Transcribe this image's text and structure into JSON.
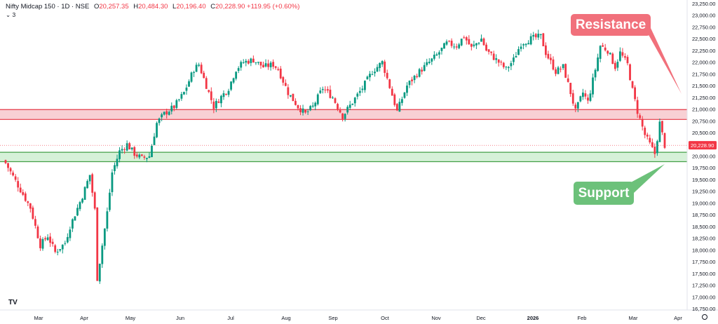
{
  "header": {
    "symbol": "Nifty Midcap 150 · 1D · NSE",
    "open_label": "O",
    "open": "20,257.35",
    "high_label": "H",
    "high": "20,484.30",
    "low_label": "L",
    "low": "20,196.40",
    "close_label": "C",
    "close": "20,228.90",
    "change": "+119.95 (+0.60%)",
    "sub_count": "3",
    "tv_logo": "TV"
  },
  "annotations": {
    "resistance": "Resistance",
    "support": "Support"
  },
  "price_badge": "20,228.90",
  "colors": {
    "up": "#089981",
    "down": "#f23645",
    "resistance_zone": "#f7c8cc",
    "resistance_line": "#e53946",
    "support_zone": "#d2efd4",
    "support_line": "#43a047",
    "resistance_callout": "#f1707b",
    "support_callout": "#6cc17a"
  },
  "chart_data": {
    "type": "candlestick",
    "ylim": [
      16750,
      23250
    ],
    "y_ticks": [
      "23,250.00",
      "23,000.00",
      "22,750.00",
      "22,500.00",
      "22,250.00",
      "22,000.00",
      "21,750.00",
      "21,500.00",
      "21,250.00",
      "21,000.00",
      "20,750.00",
      "20,500.00",
      "20,000.00",
      "19,750.00",
      "19,500.00",
      "19,250.00",
      "19,000.00",
      "18,750.00",
      "18,500.00",
      "18,250.00",
      "18,000.00",
      "17,750.00",
      "17,500.00",
      "17,250.00",
      "17,000.00",
      "16,750.00"
    ],
    "x_ticks": [
      "Mar",
      "Apr",
      "May",
      "Jun",
      "Jul",
      "Aug",
      "Sep",
      "Oct",
      "Nov",
      "Dec",
      "2026",
      "Feb",
      "Mar",
      "Apr"
    ],
    "resistance_zone": [
      20780,
      20990
    ],
    "support_zone": [
      19880,
      20080
    ],
    "anchors": [
      [
        0,
        19850
      ],
      [
        10,
        18900
      ],
      [
        14,
        18100
      ],
      [
        17,
        18300
      ],
      [
        20,
        17950
      ],
      [
        24,
        18150
      ],
      [
        26,
        18500
      ],
      [
        31,
        19150
      ],
      [
        34,
        19600
      ],
      [
        36,
        18850
      ],
      [
        37,
        17400
      ],
      [
        41,
        18800
      ],
      [
        43,
        19650
      ],
      [
        46,
        20100
      ],
      [
        49,
        20250
      ],
      [
        52,
        20050
      ],
      [
        55,
        19950
      ],
      [
        58,
        20000
      ],
      [
        61,
        20700
      ],
      [
        64,
        20900
      ],
      [
        68,
        21050
      ],
      [
        72,
        21350
      ],
      [
        76,
        21850
      ],
      [
        78,
        21950
      ],
      [
        81,
        21500
      ],
      [
        84,
        21050
      ],
      [
        86,
        21200
      ],
      [
        90,
        21450
      ],
      [
        93,
        21850
      ],
      [
        96,
        22000
      ],
      [
        100,
        22050
      ],
      [
        104,
        21900
      ],
      [
        108,
        21950
      ],
      [
        110,
        21850
      ],
      [
        114,
        21350
      ],
      [
        118,
        21050
      ],
      [
        121,
        20900
      ],
      [
        124,
        21050
      ],
      [
        128,
        21450
      ],
      [
        132,
        21250
      ],
      [
        136,
        20850
      ],
      [
        140,
        21150
      ],
      [
        144,
        21450
      ],
      [
        148,
        21800
      ],
      [
        152,
        22000
      ],
      [
        156,
        21300
      ],
      [
        158,
        20950
      ],
      [
        162,
        21500
      ],
      [
        166,
        21750
      ],
      [
        170,
        21950
      ],
      [
        174,
        22150
      ],
      [
        178,
        22400
      ],
      [
        182,
        22350
      ],
      [
        185,
        22550
      ],
      [
        188,
        22300
      ],
      [
        192,
        22500
      ],
      [
        194,
        22250
      ],
      [
        198,
        22050
      ],
      [
        202,
        21850
      ],
      [
        205,
        22050
      ],
      [
        208,
        22400
      ],
      [
        212,
        22500
      ],
      [
        216,
        22550
      ],
      [
        218,
        22200
      ],
      [
        222,
        21800
      ],
      [
        225,
        21900
      ],
      [
        228,
        21350
      ],
      [
        230,
        20950
      ],
      [
        233,
        21350
      ],
      [
        235,
        21150
      ],
      [
        238,
        21850
      ],
      [
        240,
        22350
      ],
      [
        243,
        22250
      ],
      [
        246,
        21900
      ],
      [
        248,
        22200
      ],
      [
        251,
        21950
      ],
      [
        253,
        21400
      ],
      [
        255,
        20950
      ],
      [
        258,
        20450
      ],
      [
        260,
        20250
      ],
      [
        262,
        20050
      ],
      [
        264,
        20700
      ],
      [
        266,
        20229
      ]
    ]
  }
}
